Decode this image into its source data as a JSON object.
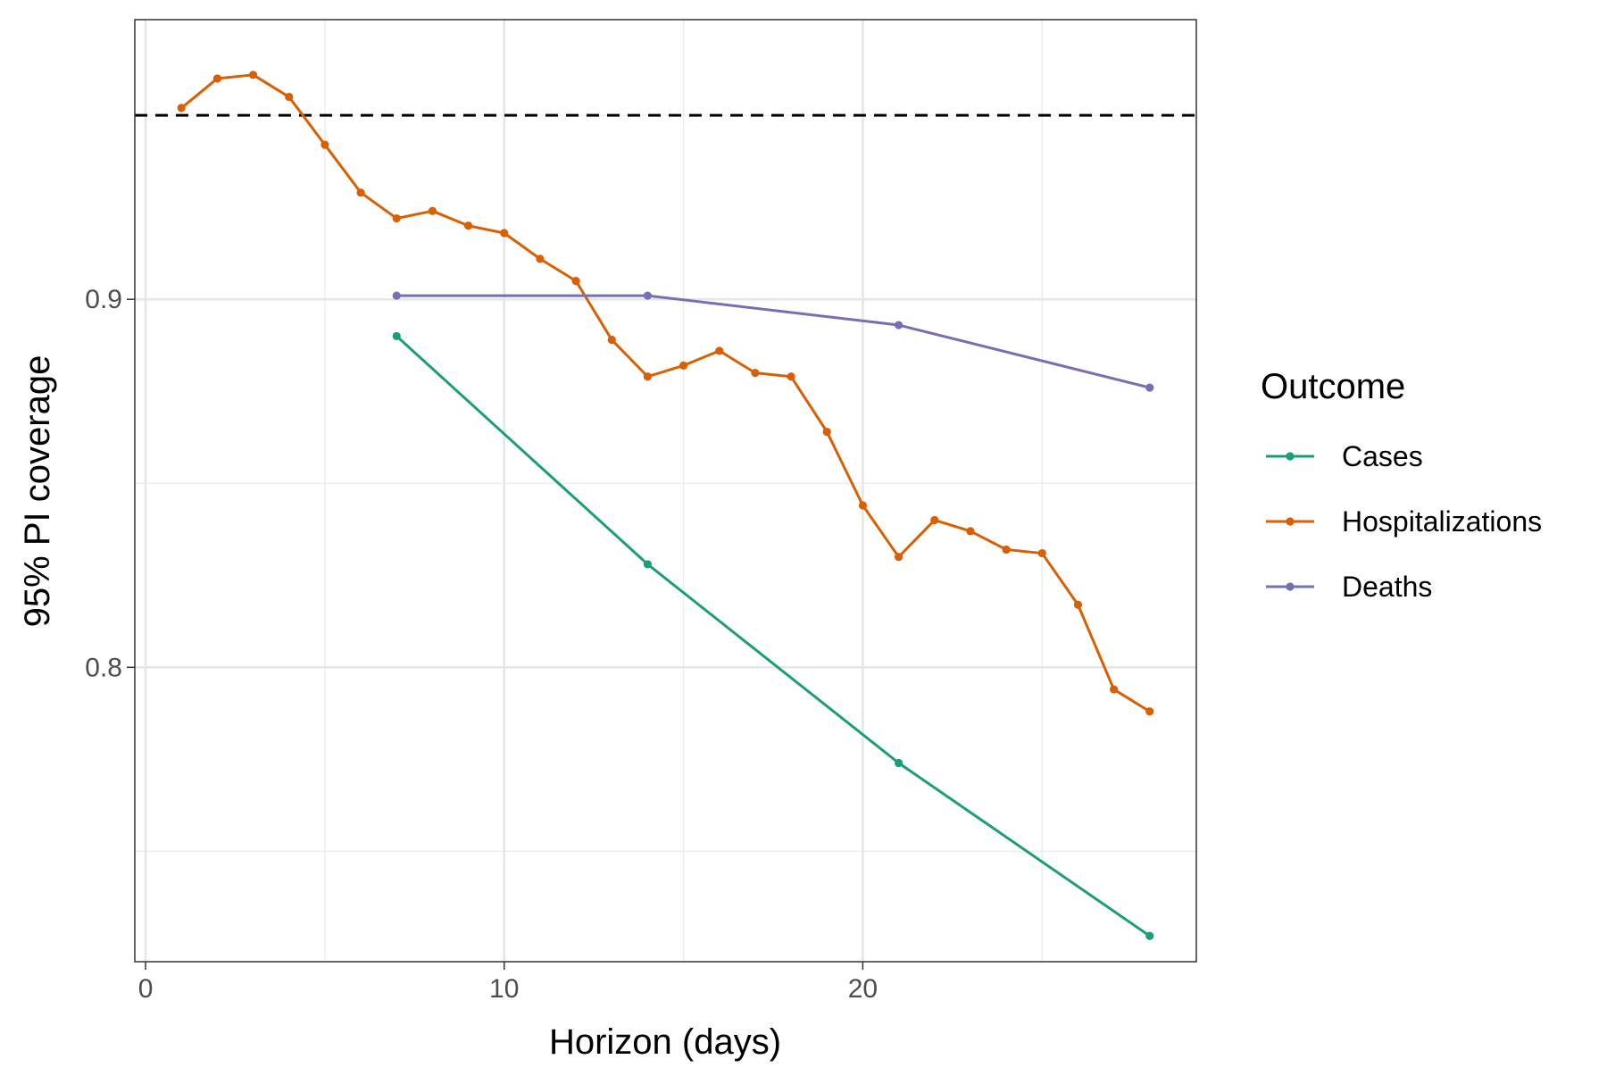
{
  "chart_data": {
    "type": "line",
    "title": "",
    "xlabel": "Horizon (days)",
    "ylabel": "95% PI coverage",
    "xlim": [
      -0.3,
      29.3
    ],
    "ylim": [
      0.72,
      0.976
    ],
    "x_ticks": [
      0,
      10,
      20
    ],
    "x_tick_labels": [
      "0",
      "10",
      "20"
    ],
    "x_minor_ticks": [
      5,
      15,
      25
    ],
    "y_ticks": [
      0.8,
      0.9
    ],
    "y_tick_labels": [
      "0.8",
      "0.9"
    ],
    "y_minor_ticks": [
      0.75,
      0.85,
      0.95
    ],
    "grid": true,
    "reference_line": {
      "y": 0.95,
      "style": "dashed",
      "color": "#000000"
    },
    "legend": {
      "title": "Outcome",
      "position": "right"
    },
    "series": [
      {
        "name": "Cases",
        "color": "#1b9e77",
        "x": [
          7,
          14,
          21,
          28
        ],
        "y": [
          0.89,
          0.828,
          0.774,
          0.727
        ]
      },
      {
        "name": "Hospitalizations",
        "color": "#d95f02",
        "x": [
          1,
          2,
          3,
          4,
          5,
          6,
          7,
          8,
          9,
          10,
          11,
          12,
          13,
          14,
          15,
          16,
          17,
          18,
          19,
          20,
          21,
          22,
          23,
          24,
          25,
          26,
          27,
          28
        ],
        "y": [
          0.952,
          0.96,
          0.961,
          0.955,
          0.942,
          0.929,
          0.922,
          0.924,
          0.92,
          0.918,
          0.911,
          0.905,
          0.889,
          0.879,
          0.882,
          0.886,
          0.88,
          0.879,
          0.864,
          0.844,
          0.83,
          0.84,
          0.837,
          0.832,
          0.831,
          0.817,
          0.794,
          0.788
        ]
      },
      {
        "name": "Deaths",
        "color": "#7570b3",
        "x": [
          7,
          14,
          21,
          28
        ],
        "y": [
          0.901,
          0.901,
          0.893,
          0.876
        ]
      }
    ]
  }
}
